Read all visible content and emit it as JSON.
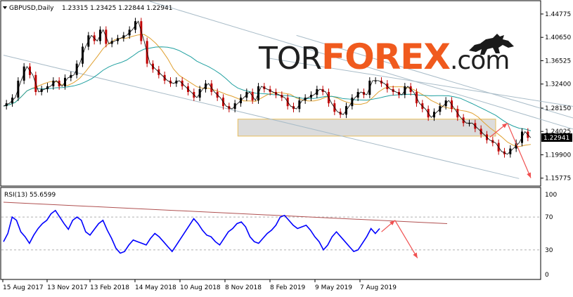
{
  "header": {
    "symbol": "GBPUSD,Daily",
    "ohlc": "1.23315 1.23425 1.22844 1.22941"
  },
  "logo": {
    "part1": "TOR",
    "part2": "FOREX",
    "part3": ".com",
    "icon": "bull-icon"
  },
  "rsi": {
    "label": "RSI(13) 55.6599"
  },
  "colors": {
    "price": "#000000",
    "bull_candle": "#000000",
    "bear_candle": "#c00000",
    "ma_fast": "#e0a030",
    "ma_slow": "#20a0a0",
    "channel": "#a9bcc8",
    "zone_fill": "#d9d9d9",
    "zone_border": "#e6b84a",
    "arrow": "#f05050",
    "rsi_line": "#0000ff",
    "rsi_trend": "#b05050",
    "logo_accent": "#f05a1e"
  },
  "chart_data": [
    {
      "type": "line",
      "title": "GBPUSD,Daily",
      "ylim": [
        1.145,
        1.47
      ],
      "y_ticks": [
        1.44775,
        1.4065,
        1.36525,
        1.324,
        1.2815,
        1.24025,
        1.199,
        1.15775
      ],
      "current_price": 1.22941,
      "x_ticks": [
        "15 Aug 2017",
        "13 Nov 2017",
        "13 Feb 2018",
        "14 May 2018",
        "10 Aug 2018",
        "8 Nov 2018",
        "8 Feb 2019",
        "9 May 2019",
        "7 Aug 2019"
      ],
      "series": [
        {
          "values": [
            1.285,
            1.29,
            1.3,
            1.33,
            1.355,
            1.34,
            1.31,
            1.315,
            1.32,
            1.33,
            1.32,
            1.335,
            1.34,
            1.36,
            1.39,
            1.41,
            1.4,
            1.42,
            1.395,
            1.4,
            1.405,
            1.41,
            1.42,
            1.435,
            1.4,
            1.36,
            1.35,
            1.34,
            1.33,
            1.325,
            1.33,
            1.32,
            1.31,
            1.3,
            1.315,
            1.325,
            1.31,
            1.3,
            1.285,
            1.28,
            1.29,
            1.3,
            1.31,
            1.295,
            1.32,
            1.315,
            1.31,
            1.305,
            1.3,
            1.285,
            1.28,
            1.295,
            1.3,
            1.305,
            1.315,
            1.31,
            1.29,
            1.275,
            1.27,
            1.285,
            1.3,
            1.31,
            1.305,
            1.33,
            1.33,
            1.325,
            1.315,
            1.31,
            1.305,
            1.32,
            1.31,
            1.29,
            1.28,
            1.265,
            1.275,
            1.285,
            1.295,
            1.28,
            1.265,
            1.255,
            1.255,
            1.245,
            1.235,
            1.225,
            1.22,
            1.205,
            1.2,
            1.21,
            1.22,
            1.24,
            1.229
          ]
        }
      ],
      "support_zone": [
        1.232,
        1.262
      ],
      "channel_lines": [
        {
          "from": [
            0,
            1.375
          ],
          "to": [
            88,
            1.157
          ]
        },
        {
          "from": [
            25,
            1.47
          ],
          "to": [
            105,
            1.22
          ]
        },
        {
          "from": [
            50,
            1.41
          ],
          "to": [
            105,
            1.24
          ]
        },
        {
          "from": [
            45,
            1.37
          ],
          "to": [
            100,
            1.28
          ]
        }
      ],
      "forecast_arrows": [
        {
          "from": [
            83,
            1.23
          ],
          "to": [
            86,
            1.255
          ]
        },
        {
          "from": [
            86,
            1.255
          ],
          "to": [
            90,
            1.158
          ]
        }
      ]
    },
    {
      "type": "line",
      "title": "RSI(13) 55.6599",
      "ylim": [
        0,
        100
      ],
      "y_ticks": [
        100,
        70,
        30,
        0
      ],
      "series": [
        {
          "values": [
            40,
            50,
            70,
            66,
            52,
            46,
            38,
            48,
            56,
            62,
            66,
            74,
            78,
            70,
            62,
            55,
            66,
            70,
            66,
            52,
            48,
            55,
            62,
            66,
            54,
            44,
            32,
            26,
            28,
            36,
            42,
            40,
            38,
            36,
            44,
            50,
            46,
            40,
            34,
            28,
            36,
            44,
            52,
            60,
            68,
            62,
            54,
            48,
            46,
            40,
            36,
            44,
            52,
            56,
            62,
            64,
            58,
            46,
            40,
            38,
            44,
            50,
            54,
            60,
            70,
            72,
            66,
            60,
            56,
            58,
            60,
            54,
            46,
            40,
            30,
            36,
            46,
            52,
            46,
            40,
            34,
            28,
            30,
            38,
            46,
            56,
            50,
            56
          ]
        }
      ],
      "trend_line": {
        "from": [
          0,
          88
        ],
        "to": [
          100,
          62
        ]
      },
      "forecast_arrows": [
        {
          "from": [
            84,
            52
          ],
          "to": [
            87,
            66
          ]
        },
        {
          "from": [
            87,
            66
          ],
          "to": [
            92,
            20
          ]
        }
      ]
    }
  ]
}
